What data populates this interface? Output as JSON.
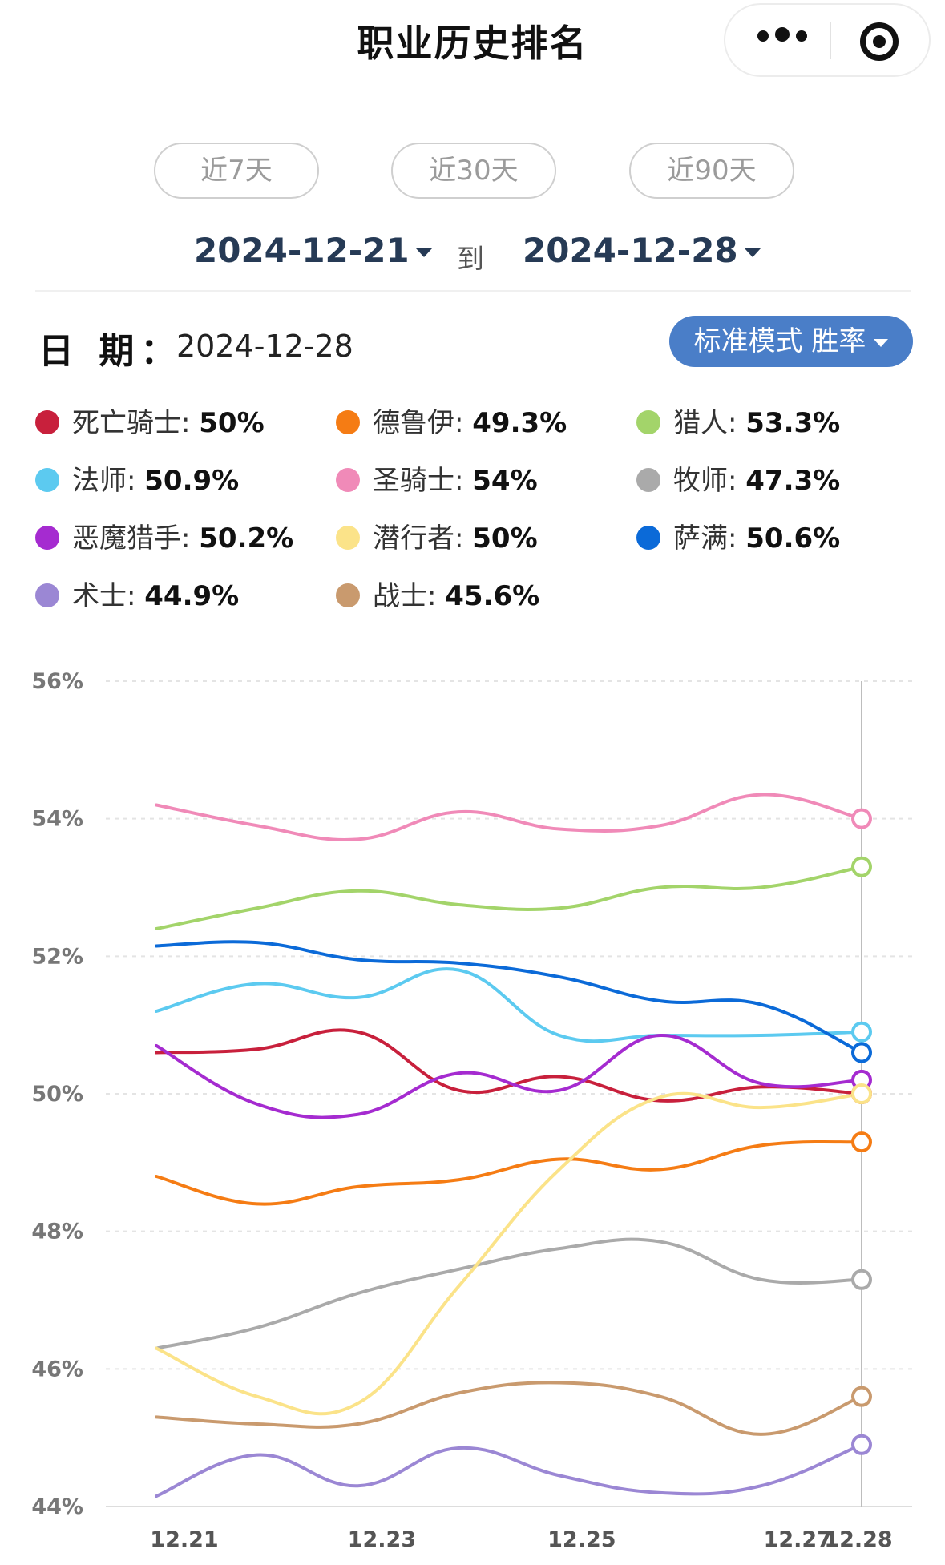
{
  "header": {
    "title": "职业历史排名"
  },
  "range_buttons": [
    "近7天",
    "近30天",
    "近90天"
  ],
  "date_range": {
    "start": "2024-12-21",
    "to": "到",
    "end": "2024-12-28"
  },
  "selected": {
    "label": "日 期：",
    "date": "2024-12-28"
  },
  "mode_button": "标准模式 胜率",
  "chart_data": {
    "type": "line",
    "x": [
      "12.21",
      "12.22",
      "12.23",
      "12.24",
      "12.25",
      "12.26",
      "12.27",
      "12.28"
    ],
    "x_tick_labels": [
      "12.21",
      "12.23",
      "12.25",
      "12.27",
      "12.28"
    ],
    "ylim": [
      44,
      56
    ],
    "y_ticks": [
      44,
      46,
      48,
      50,
      52,
      54,
      56
    ],
    "y_tick_labels": [
      "44%",
      "46%",
      "48%",
      "50%",
      "52%",
      "54%",
      "56%"
    ],
    "grid": true,
    "legend_position": "top",
    "series": [
      {
        "name": "死亡骑士",
        "color": "#c8203c",
        "value_label": "50%",
        "values": [
          50.6,
          50.65,
          50.9,
          50.05,
          50.25,
          49.9,
          50.1,
          50.0
        ]
      },
      {
        "name": "德鲁伊",
        "color": "#f57c14",
        "value_label": "49.3%",
        "values": [
          48.8,
          48.4,
          48.65,
          48.75,
          49.05,
          48.9,
          49.25,
          49.3
        ]
      },
      {
        "name": "猎人",
        "color": "#a3d46a",
        "value_label": "53.3%",
        "values": [
          52.4,
          52.7,
          52.95,
          52.75,
          52.7,
          53.0,
          53.0,
          53.3
        ]
      },
      {
        "name": "法师",
        "color": "#5ccaf0",
        "value_label": "50.9%",
        "values": [
          51.2,
          51.6,
          51.4,
          51.8,
          50.85,
          50.85,
          50.85,
          50.9
        ]
      },
      {
        "name": "圣骑士",
        "color": "#f08ab8",
        "value_label": "54%",
        "values": [
          54.2,
          53.9,
          53.7,
          54.1,
          53.85,
          53.9,
          54.35,
          54.0
        ]
      },
      {
        "name": "牧师",
        "color": "#aaaaaa",
        "value_label": "47.3%",
        "values": [
          46.3,
          46.6,
          47.1,
          47.45,
          47.75,
          47.85,
          47.3,
          47.3
        ]
      },
      {
        "name": "恶魔猎手",
        "color": "#a52bd0",
        "value_label": "50.2%",
        "values": [
          50.7,
          49.85,
          49.7,
          50.3,
          50.05,
          50.85,
          50.15,
          50.2
        ]
      },
      {
        "name": "潜行者",
        "color": "#fbe389",
        "value_label": "50%",
        "values": [
          46.3,
          45.6,
          45.5,
          47.2,
          48.9,
          49.95,
          49.8,
          50.0
        ]
      },
      {
        "name": "萨满",
        "color": "#0b6ad8",
        "value_label": "50.6%",
        "values": [
          52.15,
          52.2,
          51.95,
          51.9,
          51.7,
          51.35,
          51.3,
          50.6
        ]
      },
      {
        "name": "术士",
        "color": "#9b87d4",
        "value_label": "44.9%",
        "values": [
          44.15,
          44.75,
          44.3,
          44.85,
          44.45,
          44.2,
          44.3,
          44.9
        ]
      },
      {
        "name": "战士",
        "color": "#c99a6e",
        "value_label": "45.6%",
        "values": [
          45.3,
          45.2,
          45.2,
          45.65,
          45.8,
          45.6,
          45.05,
          45.6
        ]
      }
    ]
  }
}
